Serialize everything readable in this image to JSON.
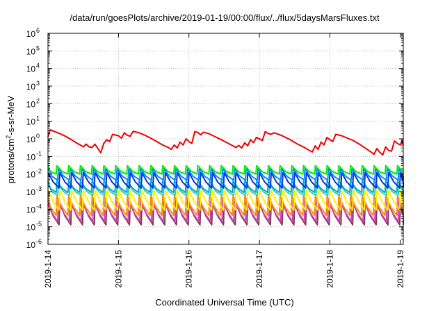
{
  "chart_data": {
    "type": "line",
    "title": "/data/run/goesPlots/archive/2019-01-19/00:00/flux/../flux/5daysMarsFluxes.txt",
    "xlabel": "Coordinated Universal Time (UTC)",
    "ylabel": {
      "prefix": "protons/cm",
      "superscript": "2",
      "suffix": "-s-sr-MeV"
    },
    "y_scale": "log",
    "ylim": [
      1e-06,
      1000000.0
    ],
    "y_ticks": [
      {
        "value": 1e-06,
        "base": "10",
        "exp": "-6"
      },
      {
        "value": 1e-05,
        "base": "10",
        "exp": "-5"
      },
      {
        "value": 0.0001,
        "base": "10",
        "exp": "-4"
      },
      {
        "value": 0.001,
        "base": "10",
        "exp": "-3"
      },
      {
        "value": 0.01,
        "base": "10",
        "exp": "-2"
      },
      {
        "value": 0.1,
        "base": "10",
        "exp": "-1"
      },
      {
        "value": 1,
        "base": "10",
        "exp": "0"
      },
      {
        "value": 10,
        "base": "10",
        "exp": "1"
      },
      {
        "value": 100,
        "base": "10",
        "exp": "2"
      },
      {
        "value": 1000,
        "base": "10",
        "exp": "3"
      },
      {
        "value": 10000,
        "base": "10",
        "exp": "4"
      },
      {
        "value": 100000,
        "base": "10",
        "exp": "5"
      },
      {
        "value": 1000000,
        "base": "10",
        "exp": "6"
      }
    ],
    "xlim": [
      "2019-01-14",
      "2019-01-19T01:00"
    ],
    "x_ticks": [
      {
        "value": "2019-01-14",
        "label": "2019-1-14"
      },
      {
        "value": "2019-01-15",
        "label": "2019-1-15"
      },
      {
        "value": "2019-01-16",
        "label": "2019-1-16"
      },
      {
        "value": "2019-01-17",
        "label": "2019-1-17"
      },
      {
        "value": "2019-01-18",
        "label": "2019-1-18"
      },
      {
        "value": "2019-01-19",
        "label": "2019-1-19"
      }
    ],
    "grid": true,
    "legend": "none",
    "sawtooth_series": [
      {
        "color": "#00ee00",
        "peak": 0.03,
        "trough": 0.01
      },
      {
        "color": "#0088ff",
        "peak": 0.02,
        "trough": 0.0045
      },
      {
        "color": "#0033dd",
        "peak": 0.012,
        "trough": 0.0016
      },
      {
        "color": "#00aacc",
        "peak": 0.004,
        "trough": 0.0009
      },
      {
        "color": "#33ccaa",
        "peak": 0.0025,
        "trough": 0.0006
      },
      {
        "color": "#ffee00",
        "peak": 0.0012,
        "trough": 9e-05
      },
      {
        "color": "#ff8800",
        "peak": 0.00055,
        "trough": 4.5e-05
      },
      {
        "color": "#cc44aa",
        "peak": 0.0003,
        "trough": 2e-05
      },
      {
        "color": "#883366",
        "peak": 0.0002,
        "trough": 1.3e-05
      }
    ],
    "sawtooth_period_days": 0.166667,
    "red_series": {
      "color": "#ee0000",
      "points": [
        [
          "2019-01-14T00:00",
          1.3
        ],
        [
          "2019-01-14T00:45",
          3.3
        ],
        [
          "2019-01-14T02:00",
          2.7
        ],
        [
          "2019-01-14T04:00",
          2.0
        ],
        [
          "2019-01-14T06:00",
          1.4
        ],
        [
          "2019-01-14T08:00",
          0.9
        ],
        [
          "2019-01-14T10:00",
          0.55
        ],
        [
          "2019-01-14T11:00",
          0.45
        ],
        [
          "2019-01-14T12:00",
          0.35
        ],
        [
          "2019-01-14T13:00",
          0.5
        ],
        [
          "2019-01-14T14:00",
          0.35
        ],
        [
          "2019-01-14T15:00",
          0.32
        ],
        [
          "2019-01-14T16:00",
          0.5
        ],
        [
          "2019-01-14T17:00",
          0.28
        ],
        [
          "2019-01-14T18:00",
          0.16
        ],
        [
          "2019-01-14T19:00",
          0.55
        ],
        [
          "2019-01-14T20:00",
          0.9
        ],
        [
          "2019-01-14T21:00",
          0.7
        ],
        [
          "2019-01-14T22:00",
          1.8
        ],
        [
          "2019-01-15T00:00",
          1.5
        ],
        [
          "2019-01-15T01:00",
          1.1
        ],
        [
          "2019-01-15T02:00",
          2.2
        ],
        [
          "2019-01-15T03:00",
          1.6
        ],
        [
          "2019-01-15T04:00",
          1.4
        ],
        [
          "2019-01-15T05:00",
          2.7
        ],
        [
          "2019-01-15T07:00",
          2.2
        ],
        [
          "2019-01-15T09:00",
          1.6
        ],
        [
          "2019-01-15T11:00",
          1.1
        ],
        [
          "2019-01-15T13:00",
          0.7
        ],
        [
          "2019-01-15T15:00",
          0.45
        ],
        [
          "2019-01-15T17:00",
          0.32
        ],
        [
          "2019-01-15T18:00",
          0.25
        ],
        [
          "2019-01-15T19:00",
          0.45
        ],
        [
          "2019-01-15T20:00",
          0.3
        ],
        [
          "2019-01-15T21:00",
          0.65
        ],
        [
          "2019-01-15T22:00",
          0.45
        ],
        [
          "2019-01-15T23:00",
          1.0
        ],
        [
          "2019-01-16T00:00",
          0.7
        ],
        [
          "2019-01-16T01:00",
          0.55
        ],
        [
          "2019-01-16T02:00",
          2.6
        ],
        [
          "2019-01-16T03:00",
          2.3
        ],
        [
          "2019-01-16T04:00",
          1.7
        ],
        [
          "2019-01-16T05:00",
          2.4
        ],
        [
          "2019-01-16T07:00",
          1.9
        ],
        [
          "2019-01-16T09:00",
          1.3
        ],
        [
          "2019-01-16T11:00",
          0.9
        ],
        [
          "2019-01-16T13:00",
          0.6
        ],
        [
          "2019-01-16T15:00",
          0.4
        ],
        [
          "2019-01-16T16:00",
          0.32
        ],
        [
          "2019-01-16T17:00",
          0.42
        ],
        [
          "2019-01-16T18:00",
          0.3
        ],
        [
          "2019-01-16T19:00",
          0.6
        ],
        [
          "2019-01-16T20:00",
          0.4
        ],
        [
          "2019-01-16T21:00",
          0.9
        ],
        [
          "2019-01-16T22:00",
          0.6
        ],
        [
          "2019-01-16T23:00",
          1.2
        ],
        [
          "2019-01-17T00:00",
          1.0
        ],
        [
          "2019-01-17T01:00",
          0.8
        ],
        [
          "2019-01-17T02:00",
          2.6
        ],
        [
          "2019-01-17T03:00",
          2.0
        ],
        [
          "2019-01-17T04:00",
          1.8
        ],
        [
          "2019-01-17T05:00",
          2.2
        ],
        [
          "2019-01-17T07:00",
          1.7
        ],
        [
          "2019-01-17T09:00",
          1.2
        ],
        [
          "2019-01-17T11:00",
          0.8
        ],
        [
          "2019-01-17T13:00",
          0.5
        ],
        [
          "2019-01-17T15:00",
          0.35
        ],
        [
          "2019-01-17T17:00",
          0.22
        ],
        [
          "2019-01-17T18:00",
          0.18
        ],
        [
          "2019-01-17T19:00",
          0.4
        ],
        [
          "2019-01-17T20:00",
          0.25
        ],
        [
          "2019-01-17T21:00",
          0.65
        ],
        [
          "2019-01-17T22:00",
          0.45
        ],
        [
          "2019-01-17T23:00",
          1.2
        ],
        [
          "2019-01-18T00:00",
          0.9
        ],
        [
          "2019-01-18T01:00",
          0.7
        ],
        [
          "2019-01-18T02:00",
          1.8
        ],
        [
          "2019-01-18T04:00",
          1.5
        ],
        [
          "2019-01-18T06:00",
          1.1
        ],
        [
          "2019-01-18T08:00",
          0.8
        ],
        [
          "2019-01-18T10:00",
          0.5
        ],
        [
          "2019-01-18T12:00",
          0.3
        ],
        [
          "2019-01-18T14:00",
          0.18
        ],
        [
          "2019-01-18T15:00",
          0.13
        ],
        [
          "2019-01-18T16:00",
          0.28
        ],
        [
          "2019-01-18T17:00",
          0.17
        ],
        [
          "2019-01-18T18:00",
          0.12
        ],
        [
          "2019-01-18T19:00",
          0.35
        ],
        [
          "2019-01-18T20:00",
          0.22
        ],
        [
          "2019-01-18T21:00",
          0.2
        ],
        [
          "2019-01-18T22:00",
          0.75
        ],
        [
          "2019-01-18T23:00",
          0.55
        ],
        [
          "2019-01-19T00:00",
          0.45
        ],
        [
          "2019-01-19T00:30",
          0.75
        ],
        [
          "2019-01-19T01:00",
          0.45
        ]
      ]
    }
  }
}
